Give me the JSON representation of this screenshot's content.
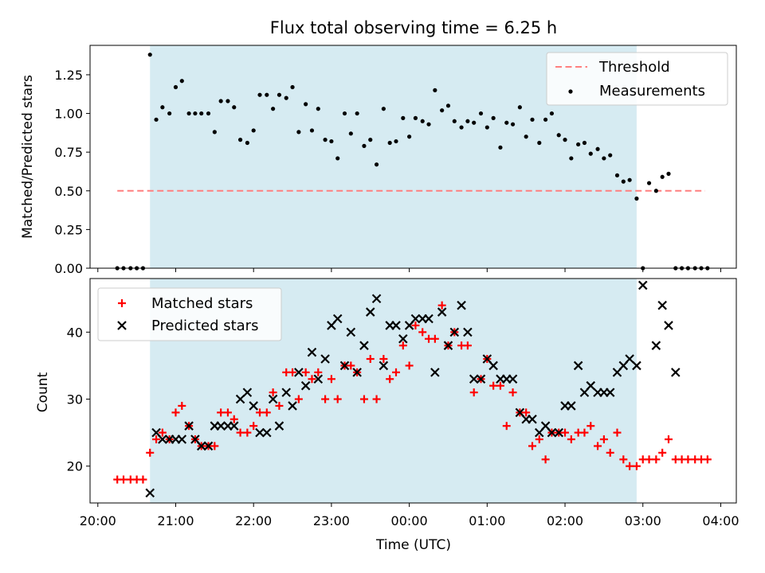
{
  "chart_data": [
    {
      "type": "scatter",
      "title": "Flux total observing time = 6.25 h",
      "xlabel": "",
      "ylabel": "Matched/Predicted stars",
      "x_unit": "hours after 20:00 UTC (axis shows clock time)",
      "xlim": [
        -0.1,
        8.2
      ],
      "ylim": [
        0.0,
        1.44
      ],
      "yticks": [
        "0.00",
        "0.25",
        "0.50",
        "0.75",
        "1.00",
        "1.25"
      ],
      "shaded_interval": [
        0.67,
        6.92
      ],
      "threshold": {
        "name": "Threshold",
        "value": 0.5,
        "x_range": [
          0.25,
          7.8
        ],
        "color": "#ff7f7f"
      },
      "legend": {
        "placement": "top-right",
        "entries": [
          "Threshold",
          "Measurements"
        ]
      },
      "series": [
        {
          "name": "Measurements",
          "color": "#000000",
          "points": [
            [
              0.25,
              0.0
            ],
            [
              0.33,
              0.0
            ],
            [
              0.42,
              0.0
            ],
            [
              0.5,
              0.0
            ],
            [
              0.58,
              0.0
            ],
            [
              0.67,
              1.38
            ],
            [
              0.75,
              0.96
            ],
            [
              0.83,
              1.04
            ],
            [
              0.92,
              1.0
            ],
            [
              1.0,
              1.17
            ],
            [
              1.08,
              1.21
            ],
            [
              1.17,
              1.0
            ],
            [
              1.25,
              1.0
            ],
            [
              1.33,
              1.0
            ],
            [
              1.42,
              1.0
            ],
            [
              1.5,
              0.88
            ],
            [
              1.58,
              1.08
            ],
            [
              1.67,
              1.08
            ],
            [
              1.75,
              1.04
            ],
            [
              1.83,
              0.83
            ],
            [
              1.92,
              0.81
            ],
            [
              2.0,
              0.89
            ],
            [
              2.08,
              1.12
            ],
            [
              2.17,
              1.12
            ],
            [
              2.25,
              1.03
            ],
            [
              2.33,
              1.12
            ],
            [
              2.42,
              1.1
            ],
            [
              2.5,
              1.17
            ],
            [
              2.58,
              0.88
            ],
            [
              2.67,
              1.06
            ],
            [
              2.75,
              0.89
            ],
            [
              2.83,
              1.03
            ],
            [
              2.92,
              0.83
            ],
            [
              3.0,
              0.82
            ],
            [
              3.08,
              0.71
            ],
            [
              3.17,
              1.0
            ],
            [
              3.25,
              0.87
            ],
            [
              3.33,
              1.0
            ],
            [
              3.42,
              0.79
            ],
            [
              3.5,
              0.83
            ],
            [
              3.58,
              0.67
            ],
            [
              3.67,
              1.03
            ],
            [
              3.75,
              0.81
            ],
            [
              3.83,
              0.82
            ],
            [
              3.92,
              0.97
            ],
            [
              4.0,
              0.85
            ],
            [
              4.08,
              0.97
            ],
            [
              4.17,
              0.95
            ],
            [
              4.25,
              0.93
            ],
            [
              4.33,
              1.15
            ],
            [
              4.42,
              1.02
            ],
            [
              4.5,
              1.05
            ],
            [
              4.58,
              0.95
            ],
            [
              4.67,
              0.91
            ],
            [
              4.75,
              0.95
            ],
            [
              4.83,
              0.94
            ],
            [
              4.92,
              1.0
            ],
            [
              5.0,
              0.91
            ],
            [
              5.08,
              0.97
            ],
            [
              5.17,
              0.78
            ],
            [
              5.25,
              0.94
            ],
            [
              5.33,
              0.93
            ],
            [
              5.42,
              1.04
            ],
            [
              5.5,
              0.85
            ],
            [
              5.58,
              0.96
            ],
            [
              5.67,
              0.81
            ],
            [
              5.75,
              0.96
            ],
            [
              5.83,
              1.0
            ],
            [
              5.92,
              0.86
            ],
            [
              6.0,
              0.83
            ],
            [
              6.08,
              0.71
            ],
            [
              6.17,
              0.8
            ],
            [
              6.25,
              0.81
            ],
            [
              6.33,
              0.74
            ],
            [
              6.42,
              0.77
            ],
            [
              6.5,
              0.71
            ],
            [
              6.58,
              0.73
            ],
            [
              6.67,
              0.6
            ],
            [
              6.75,
              0.56
            ],
            [
              6.83,
              0.57
            ],
            [
              6.92,
              0.45
            ],
            [
              7.0,
              0.0
            ],
            [
              7.08,
              0.55
            ],
            [
              7.17,
              0.5
            ],
            [
              7.25,
              0.59
            ],
            [
              7.33,
              0.61
            ],
            [
              7.42,
              0.0
            ],
            [
              7.5,
              0.0
            ],
            [
              7.58,
              0.0
            ],
            [
              7.67,
              0.0
            ],
            [
              7.75,
              0.0
            ],
            [
              7.83,
              0.0
            ]
          ]
        }
      ]
    },
    {
      "type": "scatter",
      "title": "",
      "xlabel": "Time (UTC)",
      "ylabel": "Count",
      "x_unit": "hours after 20:00 UTC (axis shows clock time)",
      "xlim": [
        -0.1,
        8.2
      ],
      "ylim": [
        14.5,
        48.0
      ],
      "yticks": [
        "20",
        "30",
        "40"
      ],
      "xticks": [
        "20:00",
        "21:00",
        "22:00",
        "23:00",
        "00:00",
        "01:00",
        "02:00",
        "03:00",
        "04:00"
      ],
      "shaded_interval": [
        0.67,
        6.92
      ],
      "legend": {
        "placement": "top-left",
        "entries": [
          "Matched stars",
          "Predicted stars"
        ]
      },
      "series": [
        {
          "name": "Matched stars",
          "marker": "plus",
          "color": "#ff0000",
          "points": [
            [
              0.25,
              18
            ],
            [
              0.33,
              18
            ],
            [
              0.42,
              18
            ],
            [
              0.5,
              18
            ],
            [
              0.58,
              18
            ],
            [
              0.67,
              22
            ],
            [
              0.75,
              24
            ],
            [
              0.83,
              25
            ],
            [
              0.92,
              24
            ],
            [
              1.0,
              28
            ],
            [
              1.08,
              29
            ],
            [
              1.17,
              26
            ],
            [
              1.25,
              24
            ],
            [
              1.33,
              23
            ],
            [
              1.42,
              23
            ],
            [
              1.5,
              23
            ],
            [
              1.58,
              28
            ],
            [
              1.67,
              28
            ],
            [
              1.75,
              27
            ],
            [
              1.83,
              25
            ],
            [
              1.92,
              25
            ],
            [
              2.0,
              26
            ],
            [
              2.08,
              28
            ],
            [
              2.17,
              28
            ],
            [
              2.25,
              31
            ],
            [
              2.33,
              29
            ],
            [
              2.42,
              34
            ],
            [
              2.5,
              34
            ],
            [
              2.58,
              30
            ],
            [
              2.67,
              34
            ],
            [
              2.75,
              33
            ],
            [
              2.83,
              34
            ],
            [
              2.92,
              30
            ],
            [
              3.0,
              33
            ],
            [
              3.08,
              30
            ],
            [
              3.17,
              35
            ],
            [
              3.25,
              35
            ],
            [
              3.33,
              34
            ],
            [
              3.42,
              30
            ],
            [
              3.5,
              36
            ],
            [
              3.58,
              30
            ],
            [
              3.67,
              36
            ],
            [
              3.75,
              33
            ],
            [
              3.83,
              34
            ],
            [
              3.92,
              38
            ],
            [
              4.0,
              35
            ],
            [
              4.08,
              41
            ],
            [
              4.17,
              40
            ],
            [
              4.25,
              39
            ],
            [
              4.33,
              39
            ],
            [
              4.42,
              44
            ],
            [
              4.5,
              38
            ],
            [
              4.58,
              40
            ],
            [
              4.67,
              38
            ],
            [
              4.75,
              38
            ],
            [
              4.83,
              31
            ],
            [
              4.92,
              33
            ],
            [
              5.0,
              36
            ],
            [
              5.08,
              32
            ],
            [
              5.17,
              32
            ],
            [
              5.25,
              26
            ],
            [
              5.33,
              31
            ],
            [
              5.42,
              28
            ],
            [
              5.5,
              28
            ],
            [
              5.58,
              23
            ],
            [
              5.67,
              24
            ],
            [
              5.75,
              21
            ],
            [
              5.83,
              25
            ],
            [
              5.92,
              25
            ],
            [
              6.0,
              25
            ],
            [
              6.08,
              24
            ],
            [
              6.17,
              25
            ],
            [
              6.25,
              25
            ],
            [
              6.33,
              26
            ],
            [
              6.42,
              23
            ],
            [
              6.5,
              24
            ],
            [
              6.58,
              22
            ],
            [
              6.67,
              25
            ],
            [
              6.75,
              21
            ],
            [
              6.83,
              20
            ],
            [
              6.92,
              20
            ],
            [
              7.0,
              21
            ],
            [
              7.08,
              21
            ],
            [
              7.17,
              21
            ],
            [
              7.25,
              22
            ],
            [
              7.33,
              24
            ],
            [
              7.42,
              21
            ],
            [
              7.5,
              21
            ],
            [
              7.58,
              21
            ],
            [
              7.67,
              21
            ],
            [
              7.75,
              21
            ],
            [
              7.83,
              21
            ]
          ]
        },
        {
          "name": "Predicted stars",
          "marker": "x",
          "color": "#000000",
          "points": [
            [
              0.67,
              16
            ],
            [
              0.75,
              25
            ],
            [
              0.83,
              24
            ],
            [
              0.92,
              24
            ],
            [
              1.0,
              24
            ],
            [
              1.08,
              24
            ],
            [
              1.17,
              26
            ],
            [
              1.25,
              24
            ],
            [
              1.33,
              23
            ],
            [
              1.42,
              23
            ],
            [
              1.5,
              26
            ],
            [
              1.58,
              26
            ],
            [
              1.67,
              26
            ],
            [
              1.75,
              26
            ],
            [
              1.83,
              30
            ],
            [
              1.92,
              31
            ],
            [
              2.0,
              29
            ],
            [
              2.08,
              25
            ],
            [
              2.17,
              25
            ],
            [
              2.25,
              30
            ],
            [
              2.33,
              26
            ],
            [
              2.42,
              31
            ],
            [
              2.5,
              29
            ],
            [
              2.58,
              34
            ],
            [
              2.67,
              32
            ],
            [
              2.75,
              37
            ],
            [
              2.83,
              33
            ],
            [
              2.92,
              36
            ],
            [
              3.0,
              41
            ],
            [
              3.08,
              42
            ],
            [
              3.17,
              35
            ],
            [
              3.25,
              40
            ],
            [
              3.33,
              34
            ],
            [
              3.42,
              38
            ],
            [
              3.5,
              43
            ],
            [
              3.58,
              45
            ],
            [
              3.67,
              35
            ],
            [
              3.75,
              41
            ],
            [
              3.83,
              41
            ],
            [
              3.92,
              39
            ],
            [
              4.0,
              41
            ],
            [
              4.08,
              42
            ],
            [
              4.17,
              42
            ],
            [
              4.25,
              42
            ],
            [
              4.33,
              34
            ],
            [
              4.42,
              43
            ],
            [
              4.5,
              38
            ],
            [
              4.58,
              40
            ],
            [
              4.67,
              44
            ],
            [
              4.75,
              40
            ],
            [
              4.83,
              33
            ],
            [
              4.92,
              33
            ],
            [
              5.0,
              36
            ],
            [
              5.08,
              35
            ],
            [
              5.17,
              33
            ],
            [
              5.25,
              33
            ],
            [
              5.33,
              33
            ],
            [
              5.42,
              28
            ],
            [
              5.5,
              27
            ],
            [
              5.58,
              27
            ],
            [
              5.67,
              25
            ],
            [
              5.75,
              26
            ],
            [
              5.83,
              25
            ],
            [
              5.92,
              25
            ],
            [
              6.0,
              29
            ],
            [
              6.08,
              29
            ],
            [
              6.17,
              35
            ],
            [
              6.25,
              31
            ],
            [
              6.33,
              32
            ],
            [
              6.42,
              31
            ],
            [
              6.5,
              31
            ],
            [
              6.58,
              31
            ],
            [
              6.67,
              34
            ],
            [
              6.75,
              35
            ],
            [
              6.83,
              36
            ],
            [
              6.92,
              35
            ],
            [
              7.0,
              47
            ],
            [
              7.17,
              38
            ],
            [
              7.25,
              44
            ],
            [
              7.33,
              41
            ],
            [
              7.42,
              34
            ]
          ]
        }
      ]
    }
  ]
}
